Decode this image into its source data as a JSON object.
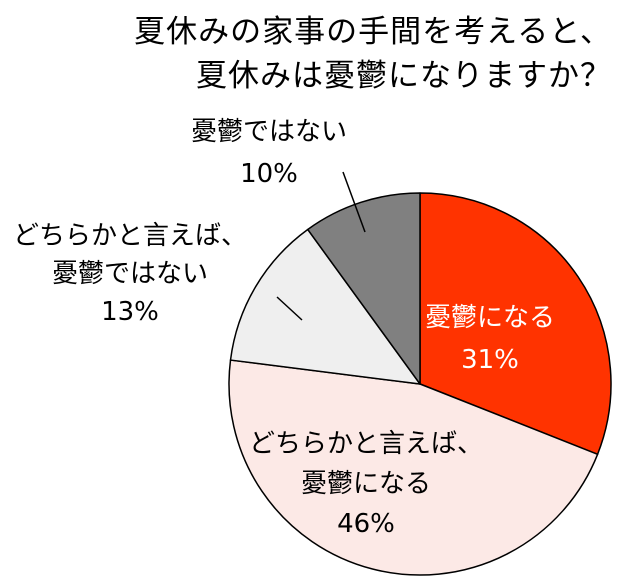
{
  "title_lines": [
    "夏休みの家事の手間を考えると、",
    "夏休みは憂鬱になりますか？"
  ],
  "chart_data": {
    "type": "pie",
    "start_angle": "12 o'clock",
    "direction": "clockwise",
    "slices": [
      {
        "label_lines": [
          "憂鬱になる"
        ],
        "value": 31,
        "value_label": "31%",
        "color": "#ff3300",
        "label_color": "#ffffff"
      },
      {
        "label_lines": [
          "どちらかと言えば、",
          "憂鬱になる"
        ],
        "value": 46,
        "value_label": "46%",
        "color": "#fce9e6",
        "label_color": "#000000"
      },
      {
        "label_lines": [
          "どちらかと言えば、",
          "憂鬱ではない"
        ],
        "value": 13,
        "value_label": "13%",
        "color": "#efefef",
        "label_color": "#000000"
      },
      {
        "label_lines": [
          "憂鬱ではない"
        ],
        "value": 10,
        "value_label": "10%",
        "color": "#808080",
        "label_color": "#000000"
      }
    ]
  }
}
